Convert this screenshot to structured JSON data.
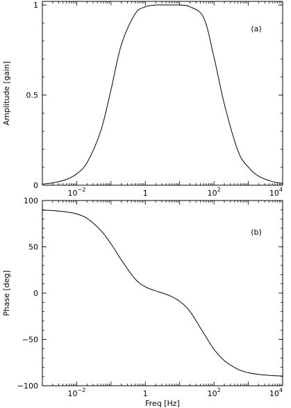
{
  "chart_data": [
    {
      "type": "line",
      "panel_tag": "(a)",
      "ylabel": "Amplitude [gain]",
      "xlabel": "",
      "x_scale": "log",
      "xlim": [
        0.001,
        10000
      ],
      "ylim": [
        0,
        1.02
      ],
      "xticks": [
        {
          "value": 0.01,
          "base": "10",
          "exp": "−2"
        },
        {
          "value": 1,
          "base": "1",
          "exp": ""
        },
        {
          "value": 100,
          "base": "10",
          "exp": "2"
        },
        {
          "value": 10000,
          "base": "10",
          "exp": "4"
        }
      ],
      "yticks": [
        {
          "value": 0,
          "label": "0"
        },
        {
          "value": 0.5,
          "label": "0.5"
        },
        {
          "value": 1,
          "label": "1"
        }
      ],
      "series": [
        {
          "x": [
            0.001,
            0.002,
            0.005,
            0.01,
            0.02,
            0.05,
            0.1,
            0.2,
            0.5,
            1,
            2,
            5,
            10,
            20,
            50,
            100,
            200,
            500,
            1000,
            2000,
            5000,
            10000
          ],
          "y": [
            0.006,
            0.013,
            0.032,
            0.063,
            0.125,
            0.3,
            0.53,
            0.78,
            0.95,
            0.99,
            1.0,
            1.0,
            1.0,
            0.99,
            0.93,
            0.71,
            0.45,
            0.19,
            0.1,
            0.05,
            0.02,
            0.01
          ]
        }
      ]
    },
    {
      "type": "line",
      "panel_tag": "(b)",
      "ylabel": "Phase [deg]",
      "xlabel": "Freq [Hz]",
      "x_scale": "log",
      "xlim": [
        0.001,
        10000
      ],
      "ylim": [
        -100,
        100
      ],
      "xticks": [
        {
          "value": 0.01,
          "base": "10",
          "exp": "−2"
        },
        {
          "value": 1,
          "base": "1",
          "exp": ""
        },
        {
          "value": 100,
          "base": "10",
          "exp": "2"
        },
        {
          "value": 10000,
          "base": "10",
          "exp": "4"
        }
      ],
      "yticks": [
        {
          "value": -100,
          "label": "−100"
        },
        {
          "value": -50,
          "label": "−50"
        },
        {
          "value": 0,
          "label": "0"
        },
        {
          "value": 50,
          "label": "50"
        },
        {
          "value": 100,
          "label": "100"
        }
      ],
      "series": [
        {
          "x": [
            0.001,
            0.002,
            0.005,
            0.01,
            0.02,
            0.05,
            0.1,
            0.2,
            0.5,
            1,
            2,
            5,
            10,
            20,
            50,
            100,
            200,
            500,
            1000,
            2000,
            5000,
            10000
          ],
          "y": [
            89.6,
            89.1,
            87.7,
            85.5,
            80.8,
            67.8,
            53.1,
            35.8,
            15.4,
            6.8,
            2.4,
            -2.6,
            -8.9,
            -19.9,
            -43.3,
            -60.7,
            -72.9,
            -82.3,
            -85.9,
            -87.8,
            -89.1,
            -89.5
          ]
        }
      ]
    }
  ]
}
